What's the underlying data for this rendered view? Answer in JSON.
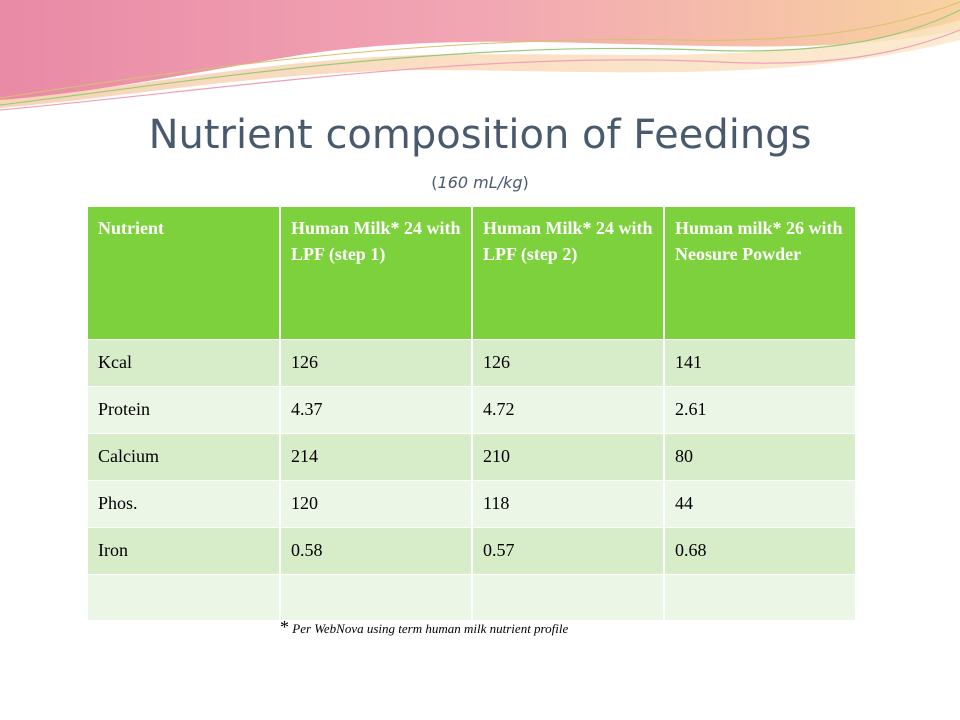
{
  "slide": {
    "title": "Nutrient composition of Feedings",
    "subtitle": "160 mL/kg"
  },
  "table": {
    "headers": [
      "Nutrient",
      "Human Milk* 24 with LPF (step 1)",
      "Human Milk* 24 with LPF (step 2)",
      "Human milk* 26 with Neosure Powder"
    ],
    "rows": [
      [
        "Kcal",
        "126",
        "126",
        "141"
      ],
      [
        "Protein",
        "4.37",
        "4.72",
        "2.61"
      ],
      [
        "Calcium",
        "214",
        "210",
        "80"
      ],
      [
        "Phos.",
        "120",
        "118",
        "44"
      ],
      [
        "Iron",
        "0.58",
        "0.57",
        "0.68"
      ]
    ],
    "footnote_symbol": "*",
    "footnote_text": "Per WebNova using term human milk nutrient profile"
  },
  "colors": {
    "header_green": "#7dd13c",
    "row_dark": "#d7ecc9",
    "row_light": "#ecf6e6",
    "title": "#4a5a6e"
  }
}
